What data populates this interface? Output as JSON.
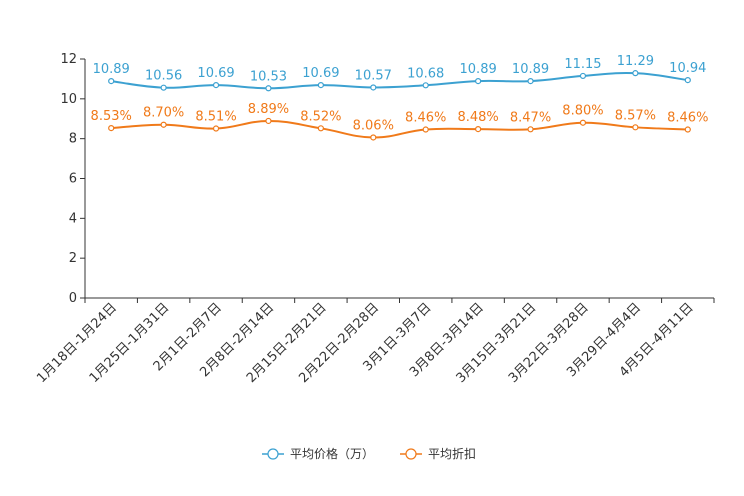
{
  "chart_data": {
    "type": "line",
    "categories": [
      "1月18日-1月24日",
      "1月25日-1月31日",
      "2月1日-2月7日",
      "2月8日-2月14日",
      "2月15日-2月21日",
      "2月22日-2月28日",
      "3月1日-3月7日",
      "3月8日-3月14日",
      "3月15日-3月21日",
      "3月22日-3月28日",
      "3月29日-4月4日",
      "4月5日-4月11日"
    ],
    "series": [
      {
        "name": "平均价格（万）",
        "color": "#3ca1d1",
        "values": [
          10.89,
          10.56,
          10.69,
          10.53,
          10.69,
          10.57,
          10.68,
          10.89,
          10.89,
          11.15,
          11.29,
          10.94
        ],
        "labels": [
          "10.89",
          "10.56",
          "10.69",
          "10.53",
          "10.69",
          "10.57",
          "10.68",
          "10.89",
          "10.89",
          "11.15",
          "11.29",
          "10.94"
        ]
      },
      {
        "name": "平均折扣",
        "color": "#f07a1a",
        "values": [
          8.53,
          8.7,
          8.51,
          8.89,
          8.52,
          8.06,
          8.46,
          8.48,
          8.47,
          8.8,
          8.57,
          8.46
        ],
        "labels": [
          "8.53%",
          "8.70%",
          "8.51%",
          "8.89%",
          "8.52%",
          "8.06%",
          "8.46%",
          "8.48%",
          "8.47%",
          "8.80%",
          "8.57%",
          "8.46%"
        ]
      }
    ],
    "yticks": [
      "0",
      "2",
      "4",
      "6",
      "8",
      "10",
      "12"
    ],
    "ylim": [
      0,
      12
    ],
    "title": "",
    "xlabel": "",
    "ylabel": "",
    "legend": "bottom-center",
    "grid": false
  }
}
